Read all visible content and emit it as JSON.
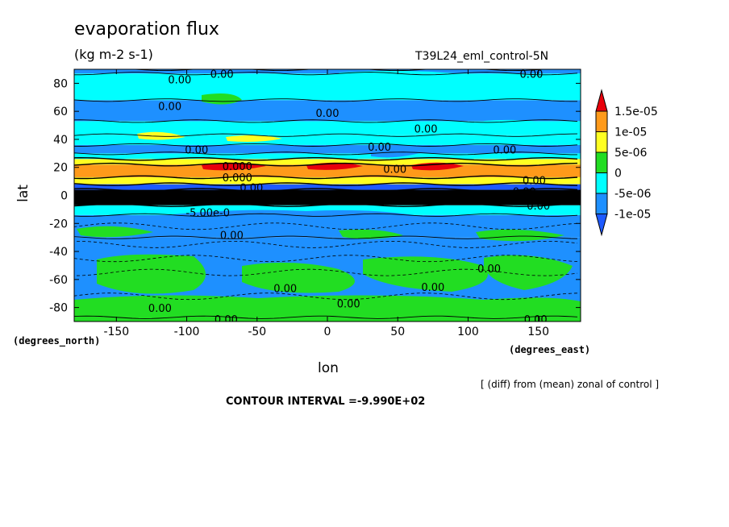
{
  "chart_data": {
    "type": "heatmap",
    "title": "evaporation flux",
    "units": "(kg m-2 s-1)",
    "run_id": "T39L24_eml_control-5N",
    "xlabel": "lon",
    "ylabel": "lat",
    "x_unit_label": "(degrees_east)",
    "y_unit_label": "(degrees_north)",
    "xlim": [
      -180,
      180
    ],
    "ylim": [
      -90,
      90
    ],
    "x_ticks": [
      -150,
      -100,
      -50,
      0,
      50,
      100,
      150
    ],
    "x_tick_labels": [
      "-150",
      "-100",
      "-50",
      "0",
      "50",
      "100",
      "150"
    ],
    "y_ticks": [
      -80,
      -60,
      -40,
      -20,
      0,
      20,
      40,
      60,
      80
    ],
    "y_tick_labels": [
      "-80",
      "-60",
      "-40",
      "-20",
      "0",
      "20",
      "40",
      "60",
      "80"
    ],
    "note": "[ (diff) from (mean) zonal of control ]",
    "contour_interval": "CONTOUR INTERVAL =-9.990E+02",
    "colorbar": {
      "labels": [
        "1.5e-05",
        "1e-05",
        "5e-06",
        "0",
        "-5e-06",
        "-1e-05"
      ],
      "colors": [
        "#e8000b",
        "#ff9a1a",
        "#ffff22",
        "#22dd22",
        "#00ffff",
        "#1e90ff",
        "#1e5aff"
      ]
    },
    "zonal_bands": [
      {
        "lat_from": -90,
        "lat_to": -87,
        "level": "0"
      },
      {
        "lat_from": -87,
        "lat_to": -30,
        "level": "-5e-06"
      },
      {
        "lat_from": -30,
        "lat_to": -14,
        "level": "-5e-06"
      },
      {
        "lat_from": -14,
        "lat_to": -7,
        "level": "0"
      },
      {
        "lat_from": -7,
        "lat_to": 4,
        "level": "1.5e-05"
      },
      {
        "lat_from": 4,
        "lat_to": 8,
        "level": "-1e-05"
      },
      {
        "lat_from": 8,
        "lat_to": 13,
        "level": "1e-05"
      },
      {
        "lat_from": 13,
        "lat_to": 22,
        "level": "1.5e-05"
      },
      {
        "lat_from": 22,
        "lat_to": 26,
        "level": "1e-05"
      },
      {
        "lat_from": 26,
        "lat_to": 30,
        "level": "0"
      },
      {
        "lat_from": 30,
        "lat_to": 36,
        "level": "-5e-06"
      },
      {
        "lat_from": 36,
        "lat_to": 43,
        "level": "0"
      },
      {
        "lat_from": 43,
        "lat_to": 53,
        "level": "0"
      },
      {
        "lat_from": 53,
        "lat_to": 68,
        "level": "-5e-06"
      },
      {
        "lat_from": 68,
        "lat_to": 87,
        "level": "0"
      },
      {
        "lat_from": 87,
        "lat_to": 90,
        "level": "-5e-06"
      }
    ],
    "contour_labels": [
      {
        "text": "0.00",
        "lon": -75,
        "lat": 86
      },
      {
        "text": "0.00",
        "lon": -105,
        "lat": 82
      },
      {
        "text": "0.00",
        "lon": 145,
        "lat": 86
      },
      {
        "text": "0.00",
        "lon": -112,
        "lat": 63
      },
      {
        "text": "0.00",
        "lon": 0,
        "lat": 58
      },
      {
        "text": "0.00",
        "lon": 70,
        "lat": 47
      },
      {
        "text": "0.00",
        "lon": -93,
        "lat": 32
      },
      {
        "text": "0.00",
        "lon": 37,
        "lat": 34
      },
      {
        "text": "0.00",
        "lon": 126,
        "lat": 32
      },
      {
        "text": "0.00",
        "lon": 147,
        "lat": 10
      },
      {
        "text": "0.00",
        "lon": 140,
        "lat": 2
      },
      {
        "text": "0.00",
        "lon": 150,
        "lat": -8
      },
      {
        "text": "-5.00e-0",
        "lon": -85,
        "lat": -13
      },
      {
        "text": "0.00",
        "lon": -68,
        "lat": -29
      },
      {
        "text": "0.00",
        "lon": -30,
        "lat": -67
      },
      {
        "text": "0.00",
        "lon": 75,
        "lat": -66
      },
      {
        "text": "0.00",
        "lon": 115,
        "lat": -53
      },
      {
        "text": "0.00",
        "lon": 15,
        "lat": -78
      },
      {
        "text": "0.00",
        "lon": -119,
        "lat": -81
      },
      {
        "text": "0.00",
        "lon": -72,
        "lat": -89
      },
      {
        "text": "0.00",
        "lon": 148,
        "lat": -89
      },
      {
        "text": "0.00",
        "lon": 48,
        "lat": 18
      },
      {
        "text": "0.000",
        "lon": -64,
        "lat": 20
      },
      {
        "text": "0.000",
        "lon": -64,
        "lat": 12
      },
      {
        "text": "0.00",
        "lon": -54,
        "lat": 5
      },
      {
        "text": "0.00",
        "lon": -56,
        "lat": -3
      }
    ]
  }
}
